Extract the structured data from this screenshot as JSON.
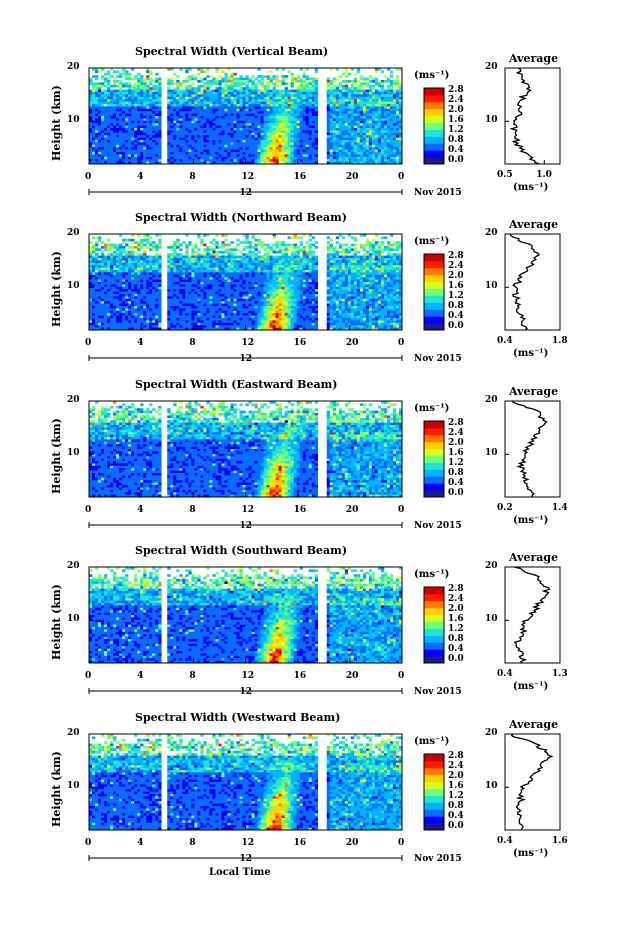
{
  "figure": {
    "xlabel_bottom": "Local Time",
    "avg_title": "Average",
    "unit_label": "(ms⁻¹)",
    "avg_unit_label": "(ms⁻¹)",
    "ylabel": "Height (km)",
    "date_label": "Nov 2015",
    "day_marker": "12",
    "x_ticks": [
      "0",
      "4",
      "8",
      "12",
      "16",
      "20",
      "0"
    ],
    "y_ticks": [
      "20",
      "10"
    ],
    "colorbar_ticks": [
      "2.8",
      "2.4",
      "2.0",
      "1.6",
      "1.2",
      "0.8",
      "0.4",
      "0.0"
    ],
    "colormap": [
      "#1a1a8c",
      "#0000ff",
      "#0a6cff",
      "#00b4ff",
      "#22e4d4",
      "#6dff7a",
      "#d7ff1e",
      "#ffd000",
      "#ff7a00",
      "#ff1a00",
      "#c80000"
    ]
  },
  "chart_data": [
    {
      "type": "heatmap",
      "title": "Spectral Width (Vertical Beam)",
      "xlabel": "",
      "ylabel": "Height (km)",
      "xlim": [
        0,
        24
      ],
      "ylim": [
        2,
        20
      ],
      "vlim": [
        0.0,
        2.8
      ],
      "data_gaps_hours": [
        [
          5.6,
          6.0
        ],
        [
          17.6,
          18.2
        ]
      ],
      "average_profile": {
        "xlim": [
          0.5,
          1.2
        ],
        "x_ticks": [
          "0.5",
          "1.0"
        ],
        "height_km": [
          2,
          4,
          6,
          8,
          10,
          12,
          14,
          16,
          18,
          20
        ],
        "value_ms": [
          0.95,
          0.75,
          0.65,
          0.6,
          0.65,
          0.7,
          0.7,
          0.8,
          0.7,
          0.65
        ]
      }
    },
    {
      "type": "heatmap",
      "title": "Spectral Width (Northward Beam)",
      "xlabel": "",
      "ylabel": "Height (km)",
      "xlim": [
        0,
        24
      ],
      "ylim": [
        2,
        20
      ],
      "vlim": [
        0.0,
        2.8
      ],
      "data_gaps_hours": [
        [
          5.6,
          6.0
        ],
        [
          17.6,
          18.2
        ]
      ],
      "average_profile": {
        "xlim": [
          0.4,
          1.8
        ],
        "x_ticks": [
          "0.4",
          "1.8"
        ],
        "height_km": [
          2,
          4,
          6,
          8,
          10,
          12,
          14,
          16,
          18,
          20
        ],
        "value_ms": [
          0.9,
          0.85,
          0.75,
          0.7,
          0.65,
          0.8,
          1.0,
          1.3,
          1.0,
          0.5
        ]
      }
    },
    {
      "type": "heatmap",
      "title": "Spectral Width (Eastward Beam)",
      "xlabel": "",
      "ylabel": "Height (km)",
      "xlim": [
        0,
        24
      ],
      "ylim": [
        2,
        20
      ],
      "vlim": [
        0.0,
        2.8
      ],
      "data_gaps_hours": [
        [
          5.6,
          6.0
        ],
        [
          17.6,
          18.2
        ]
      ],
      "average_profile": {
        "xlim": [
          0.2,
          1.4
        ],
        "x_ticks": [
          "0.2",
          "1.4"
        ],
        "height_km": [
          2,
          4,
          6,
          8,
          10,
          12,
          14,
          16,
          18,
          20
        ],
        "value_ms": [
          0.85,
          0.7,
          0.6,
          0.55,
          0.6,
          0.75,
          0.9,
          1.1,
          0.9,
          0.35
        ]
      }
    },
    {
      "type": "heatmap",
      "title": "Spectral Width (Southward Beam)",
      "xlabel": "",
      "ylabel": "Height (km)",
      "xlim": [
        0,
        24
      ],
      "ylim": [
        2,
        20
      ],
      "vlim": [
        0.0,
        2.8
      ],
      "data_gaps_hours": [
        [
          5.6,
          6.0
        ],
        [
          17.6,
          18.2
        ]
      ],
      "average_profile": {
        "xlim": [
          0.4,
          1.3
        ],
        "x_ticks": [
          "0.4",
          "1.3"
        ],
        "height_km": [
          2,
          4,
          6,
          8,
          10,
          12,
          14,
          16,
          18,
          20
        ],
        "value_ms": [
          0.7,
          0.65,
          0.6,
          0.7,
          0.75,
          0.9,
          1.0,
          1.1,
          0.95,
          0.6
        ]
      }
    },
    {
      "type": "heatmap",
      "title": "Spectral Width (Westward Beam)",
      "xlabel": "Local Time",
      "ylabel": "Height (km)",
      "xlim": [
        0,
        24
      ],
      "ylim": [
        2,
        20
      ],
      "vlim": [
        0.0,
        2.8
      ],
      "data_gaps_hours": [
        [
          5.6,
          6.0
        ],
        [
          17.6,
          18.2
        ]
      ],
      "average_profile": {
        "xlim": [
          0.4,
          1.6
        ],
        "x_ticks": [
          "0.4",
          "1.6"
        ],
        "height_km": [
          2,
          4,
          6,
          8,
          10,
          12,
          14,
          16,
          18,
          20
        ],
        "value_ms": [
          0.8,
          0.75,
          0.7,
          0.75,
          0.8,
          1.0,
          1.2,
          1.4,
          1.1,
          0.5
        ]
      }
    }
  ]
}
